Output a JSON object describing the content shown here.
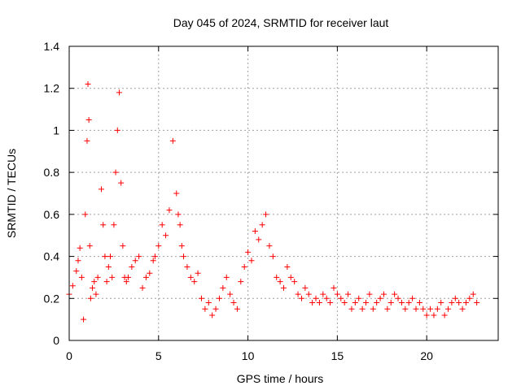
{
  "chart_data": {
    "type": "scatter",
    "title": "Day 045 of 2024, SRMTID for receiver laut",
    "xlabel": "GPS time / hours",
    "ylabel": "SRMTID / TECUs",
    "xlim": [
      0,
      24
    ],
    "ylim": [
      0,
      1.4
    ],
    "xticks": [
      0,
      5,
      10,
      15,
      20
    ],
    "xtick_labels": [
      "0",
      "5",
      "10",
      "15",
      "20"
    ],
    "yticks": [
      0,
      0.2,
      0.4,
      0.6,
      0.8,
      1.0,
      1.2,
      1.4
    ],
    "ytick_labels": [
      "0",
      "0.2",
      "0.4",
      "0.6",
      "0.8",
      "1",
      "1.2",
      "1.4"
    ],
    "grid": true,
    "marker": "+",
    "color": "#ff0000",
    "series": [
      {
        "name": "laut",
        "x": [
          0.0,
          0.2,
          0.4,
          0.5,
          0.6,
          0.7,
          0.8,
          0.9,
          1.0,
          1.05,
          1.1,
          1.15,
          1.2,
          1.3,
          1.4,
          1.5,
          1.6,
          1.8,
          1.9,
          2.0,
          2.1,
          2.2,
          2.3,
          2.4,
          2.5,
          2.6,
          2.7,
          2.8,
          2.9,
          3.0,
          3.1,
          3.2,
          3.3,
          3.5,
          3.7,
          3.9,
          4.1,
          4.3,
          4.5,
          4.7,
          4.8,
          5.0,
          5.2,
          5.4,
          5.6,
          5.8,
          6.0,
          6.1,
          6.2,
          6.3,
          6.4,
          6.6,
          6.8,
          7.0,
          7.2,
          7.4,
          7.6,
          7.8,
          8.0,
          8.2,
          8.4,
          8.6,
          8.8,
          9.0,
          9.2,
          9.4,
          9.6,
          9.8,
          10.0,
          10.2,
          10.4,
          10.6,
          10.8,
          11.0,
          11.2,
          11.4,
          11.6,
          11.8,
          12.0,
          12.2,
          12.4,
          12.6,
          12.8,
          13.0,
          13.2,
          13.4,
          13.6,
          13.8,
          14.0,
          14.2,
          14.4,
          14.6,
          14.8,
          15.0,
          15.2,
          15.4,
          15.6,
          15.8,
          16.0,
          16.2,
          16.4,
          16.6,
          16.8,
          17.0,
          17.2,
          17.4,
          17.6,
          17.8,
          18.0,
          18.2,
          18.4,
          18.6,
          18.8,
          19.0,
          19.2,
          19.4,
          19.6,
          19.8,
          20.0,
          20.2,
          20.4,
          20.6,
          20.8,
          21.0,
          21.2,
          21.4,
          21.6,
          21.8,
          22.0,
          22.2,
          22.4,
          22.6,
          22.8
        ],
        "y": [
          0.22,
          0.26,
          0.33,
          0.38,
          0.44,
          0.3,
          0.1,
          0.6,
          0.95,
          1.22,
          1.05,
          0.45,
          0.2,
          0.25,
          0.28,
          0.22,
          0.3,
          0.72,
          0.55,
          0.4,
          0.28,
          0.35,
          0.4,
          0.3,
          0.55,
          0.8,
          1.0,
          1.18,
          0.75,
          0.45,
          0.3,
          0.28,
          0.3,
          0.35,
          0.38,
          0.4,
          0.25,
          0.3,
          0.32,
          0.38,
          0.4,
          0.45,
          0.55,
          0.5,
          0.62,
          0.95,
          0.7,
          0.6,
          0.55,
          0.45,
          0.4,
          0.35,
          0.3,
          0.28,
          0.32,
          0.2,
          0.15,
          0.18,
          0.12,
          0.15,
          0.2,
          0.25,
          0.3,
          0.22,
          0.18,
          0.15,
          0.28,
          0.35,
          0.42,
          0.38,
          0.52,
          0.48,
          0.55,
          0.6,
          0.45,
          0.4,
          0.3,
          0.28,
          0.25,
          0.35,
          0.3,
          0.28,
          0.22,
          0.2,
          0.25,
          0.22,
          0.18,
          0.2,
          0.18,
          0.22,
          0.2,
          0.18,
          0.25,
          0.22,
          0.2,
          0.18,
          0.22,
          0.15,
          0.18,
          0.2,
          0.15,
          0.18,
          0.22,
          0.15,
          0.18,
          0.2,
          0.22,
          0.15,
          0.18,
          0.22,
          0.2,
          0.18,
          0.15,
          0.18,
          0.2,
          0.15,
          0.18,
          0.15,
          0.12,
          0.15,
          0.12,
          0.15,
          0.18,
          0.12,
          0.15,
          0.18,
          0.2,
          0.18,
          0.15,
          0.18,
          0.2,
          0.22,
          0.18
        ]
      }
    ]
  }
}
